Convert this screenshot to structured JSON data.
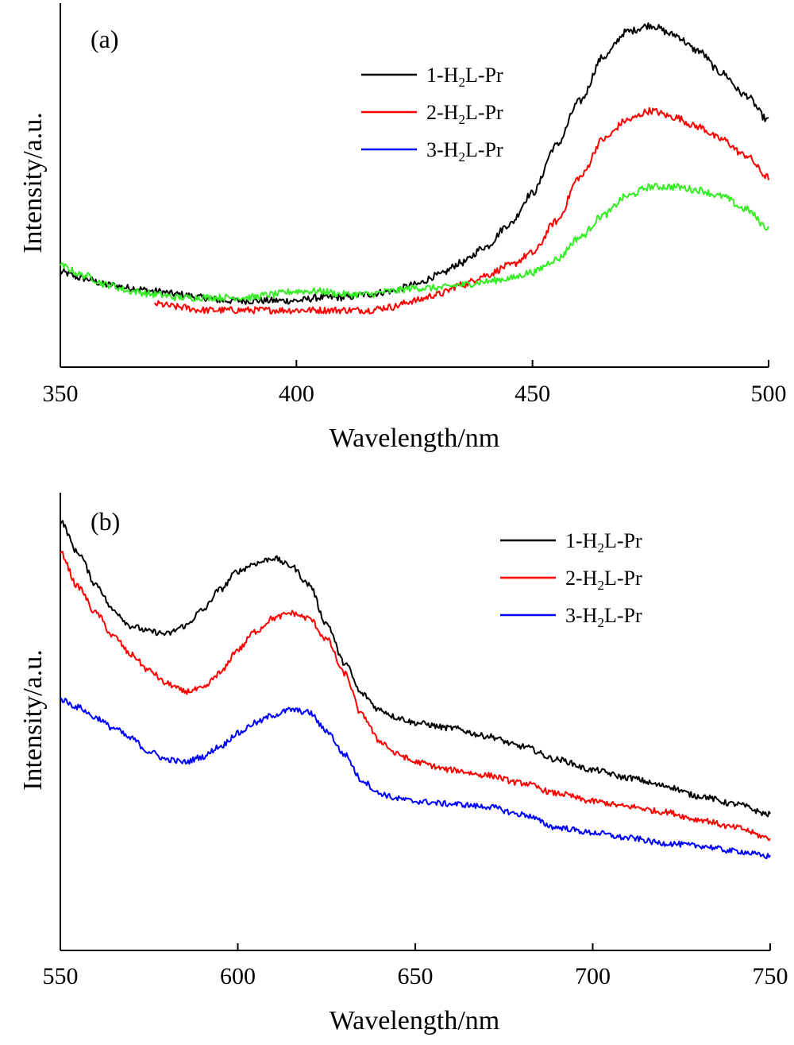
{
  "chart_data": [
    {
      "type": "line",
      "panel_label": "(a)",
      "xlabel": "Wavelength/nm",
      "ylabel": "Intensity/a.u.",
      "xlim": [
        350,
        500
      ],
      "x_ticks": [
        350,
        400,
        450,
        500
      ],
      "y_ticks_shown": false,
      "grid": false,
      "legend_position": "top-right",
      "series": [
        {
          "name_parts": [
            "1-H",
            "2",
            "L-Pr"
          ],
          "legend_color": "#000000",
          "color": "#000000",
          "x": [
            350,
            355,
            360,
            365,
            370,
            375,
            380,
            385,
            390,
            395,
            400,
            405,
            410,
            415,
            420,
            425,
            430,
            435,
            440,
            445,
            450,
            455,
            460,
            465,
            470,
            475,
            480,
            485,
            490,
            495,
            500
          ],
          "y": [
            0.6,
            0.58,
            0.56,
            0.55,
            0.54,
            0.53,
            0.52,
            0.51,
            0.51,
            0.51,
            0.51,
            0.52,
            0.52,
            0.53,
            0.54,
            0.56,
            0.59,
            0.63,
            0.68,
            0.75,
            0.85,
            1.0,
            1.14,
            1.28,
            1.36,
            1.38,
            1.35,
            1.3,
            1.23,
            1.16,
            1.08
          ]
        },
        {
          "name_parts": [
            "2-H",
            "2",
            "L-Pr"
          ],
          "legend_color": "#ff0000",
          "color": "#ff0000",
          "x": [
            370,
            375,
            380,
            385,
            390,
            395,
            400,
            405,
            410,
            415,
            420,
            425,
            430,
            435,
            440,
            445,
            450,
            455,
            460,
            465,
            470,
            475,
            480,
            485,
            490,
            495,
            500
          ],
          "y": [
            0.5,
            0.49,
            0.48,
            0.48,
            0.48,
            0.48,
            0.48,
            0.48,
            0.48,
            0.48,
            0.49,
            0.51,
            0.53,
            0.56,
            0.59,
            0.62,
            0.66,
            0.76,
            0.9,
            1.02,
            1.08,
            1.11,
            1.09,
            1.06,
            1.02,
            0.97,
            0.9
          ]
        },
        {
          "name_parts": [
            "3-H",
            "2",
            "L-Pr"
          ],
          "legend_color": "#0000ff",
          "color": "#33ee22",
          "x": [
            350,
            355,
            360,
            365,
            370,
            375,
            380,
            385,
            390,
            395,
            400,
            405,
            410,
            415,
            420,
            425,
            430,
            435,
            440,
            445,
            450,
            455,
            460,
            465,
            470,
            475,
            480,
            485,
            490,
            495,
            500
          ],
          "y": [
            0.62,
            0.59,
            0.56,
            0.54,
            0.53,
            0.52,
            0.52,
            0.52,
            0.52,
            0.53,
            0.54,
            0.54,
            0.53,
            0.53,
            0.54,
            0.55,
            0.55,
            0.56,
            0.57,
            0.58,
            0.6,
            0.64,
            0.71,
            0.78,
            0.84,
            0.87,
            0.87,
            0.86,
            0.84,
            0.8,
            0.74
          ]
        }
      ]
    },
    {
      "type": "line",
      "panel_label": "(b)",
      "xlabel": "Wavelength/nm",
      "ylabel": "Intensity/a.u.",
      "xlim": [
        550,
        750
      ],
      "x_ticks": [
        550,
        600,
        650,
        700,
        750
      ],
      "y_ticks_shown": false,
      "grid": false,
      "legend_position": "top-right",
      "series": [
        {
          "name_parts": [
            "1-H",
            "2",
            "L-Pr"
          ],
          "legend_color": "#000000",
          "color": "#000000",
          "x": [
            550,
            555,
            560,
            565,
            570,
            575,
            580,
            585,
            590,
            595,
            600,
            605,
            610,
            615,
            620,
            625,
            630,
            635,
            640,
            645,
            650,
            660,
            670,
            680,
            690,
            700,
            710,
            720,
            730,
            740,
            750
          ],
          "y": [
            1.74,
            1.62,
            1.5,
            1.4,
            1.34,
            1.32,
            1.31,
            1.34,
            1.4,
            1.48,
            1.55,
            1.58,
            1.6,
            1.57,
            1.5,
            1.35,
            1.2,
            1.08,
            1.02,
            0.99,
            0.97,
            0.95,
            0.92,
            0.88,
            0.83,
            0.79,
            0.76,
            0.73,
            0.69,
            0.66,
            0.62
          ]
        },
        {
          "name_parts": [
            "2-H",
            "2",
            "L-Pr"
          ],
          "legend_color": "#ff0000",
          "color": "#ff0000",
          "x": [
            550,
            555,
            560,
            565,
            570,
            575,
            580,
            585,
            590,
            595,
            600,
            605,
            610,
            615,
            620,
            625,
            630,
            635,
            640,
            645,
            650,
            660,
            670,
            680,
            690,
            700,
            710,
            720,
            730,
            740,
            750
          ],
          "y": [
            1.62,
            1.49,
            1.39,
            1.3,
            1.23,
            1.17,
            1.12,
            1.09,
            1.1,
            1.16,
            1.25,
            1.32,
            1.37,
            1.39,
            1.37,
            1.29,
            1.16,
            1.0,
            0.9,
            0.85,
            0.82,
            0.79,
            0.77,
            0.74,
            0.7,
            0.67,
            0.65,
            0.63,
            0.6,
            0.57,
            0.53
          ]
        },
        {
          "name_parts": [
            "3-H",
            "2",
            "L-Pr"
          ],
          "legend_color": "#0000ff",
          "color": "#0000ff",
          "x": [
            550,
            555,
            560,
            565,
            570,
            575,
            580,
            585,
            590,
            595,
            600,
            605,
            610,
            615,
            620,
            625,
            630,
            635,
            640,
            645,
            650,
            660,
            670,
            680,
            690,
            700,
            710,
            720,
            730,
            740,
            750
          ],
          "y": [
            1.06,
            1.03,
            0.99,
            0.95,
            0.91,
            0.86,
            0.83,
            0.82,
            0.84,
            0.88,
            0.93,
            0.97,
            1.0,
            1.02,
            1.01,
            0.94,
            0.85,
            0.75,
            0.7,
            0.68,
            0.67,
            0.66,
            0.65,
            0.62,
            0.57,
            0.55,
            0.53,
            0.51,
            0.5,
            0.48,
            0.46
          ]
        }
      ]
    }
  ]
}
